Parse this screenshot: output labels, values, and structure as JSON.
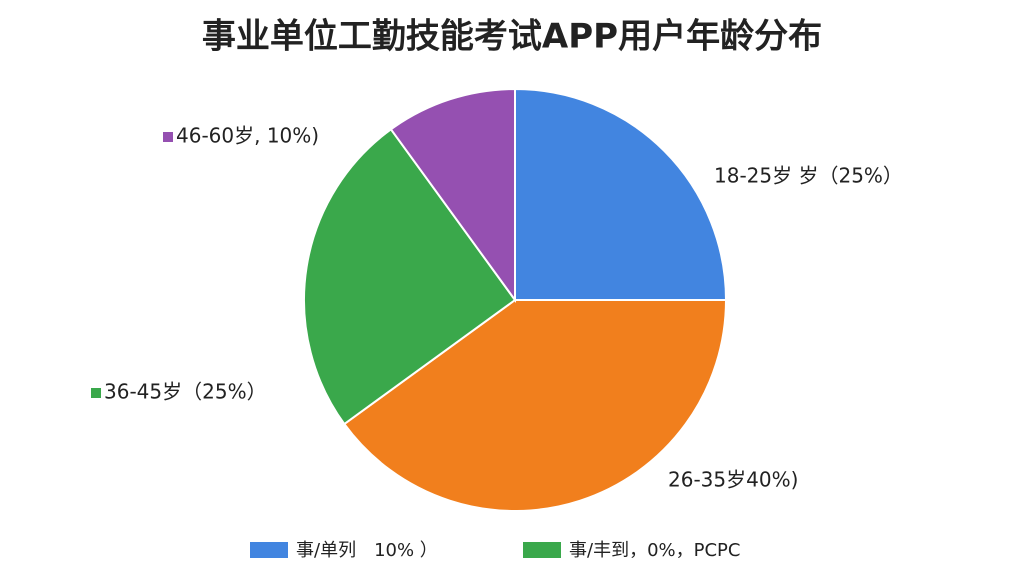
{
  "chart_data": {
    "type": "pie",
    "title": "事业单位工勤技能考试APP用户年龄分布",
    "categories": [
      "18-25岁 岁（25%）",
      "26-35岁40%)",
      "36-45岁（25%）",
      "46-60岁, 10%)"
    ],
    "values": [
      25,
      40,
      25,
      10
    ],
    "colors": [
      "#4285e0",
      "#f17f1d",
      "#3aa84b",
      "#9550b1"
    ],
    "legend": [
      {
        "label": "事/单列　10% ）",
        "color": "#4285e0"
      },
      {
        "label": "事/丰到，0%，PCPC",
        "color": "#3aa84b"
      }
    ]
  }
}
